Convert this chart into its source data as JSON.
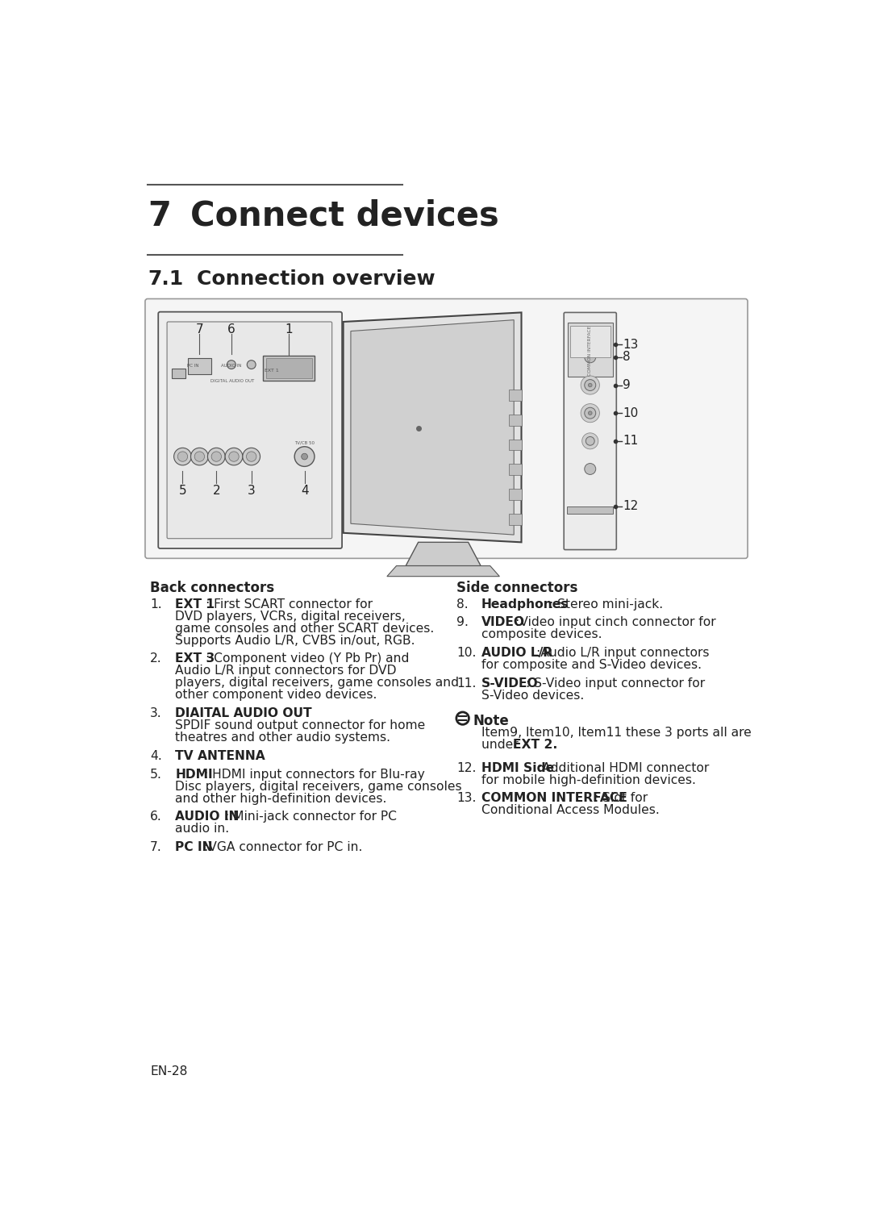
{
  "title_number": "7",
  "title_text": "Connect devices",
  "subtitle_number": "7.1",
  "subtitle_text": "Connection overview",
  "back_connectors_header": "Back connectors",
  "side_connectors_header": "Side connectors",
  "back_items": [
    {
      "num": "1.",
      "bold": "EXT 1",
      "rest": ": First SCART connector for\nDVD players, VCRs, digital receivers,\ngame consoles and other SCART devices.\nSupports Audio L/R, CVBS in/out, RGB."
    },
    {
      "num": "2.",
      "bold": "EXT 3",
      "rest": ": Component video (Y Pb Pr) and\nAudio L/R input connectors for DVD\nplayers, digital receivers, game consoles and\nother component video devices."
    },
    {
      "num": "3.",
      "bold": "DIAITAL AUDIO OUT",
      "rest": "\nSPDIF sound output connector for home\ntheatres and other audio systems."
    },
    {
      "num": "4.",
      "bold": "TV ANTENNA",
      "rest": ""
    },
    {
      "num": "5.",
      "bold": "HDMI",
      "rest": ": HDMI input connectors for Blu-ray\nDisc players, digital receivers, game consoles\nand other high-definition devices."
    },
    {
      "num": "6.",
      "bold": "AUDIO IN",
      "rest": ": Mini-jack connector for PC\naudio in."
    },
    {
      "num": "7.",
      "bold": "PC IN",
      "rest": ":VGA connector for PC in."
    }
  ],
  "side_items": [
    {
      "num": "8.",
      "bold": "Headphones",
      "rest": ": Stereo mini-jack."
    },
    {
      "num": "9.",
      "bold": "VIDEO",
      "rest": ":Video input cinch connector for\ncomposite devices."
    },
    {
      "num": "10.",
      "bold": "AUDIO L/R",
      "rest": ":Audio L/R input connectors\nfor composite and S-Video devices."
    },
    {
      "num": "11.",
      "bold": "S-VIDEO",
      "rest": ": S-Video input connector for\nS-Video devices."
    }
  ],
  "note_line1": "Item9, Item10, Item11 these 3 ports all are",
  "note_line2_normal": "under ",
  "note_line2_bold": "EXT 2.",
  "item12_bold": "HDMI Side",
  "item12_rest": ":Additional HDMI connector\nfor mobile high-definition devices.",
  "item13_bold": "COMMON INTERFACE",
  "item13_rest": ": Slot for\nConditional Access Modules.",
  "footer": "EN-28",
  "bg_color": "#ffffff",
  "text_color": "#222222",
  "line_color": "#555555"
}
